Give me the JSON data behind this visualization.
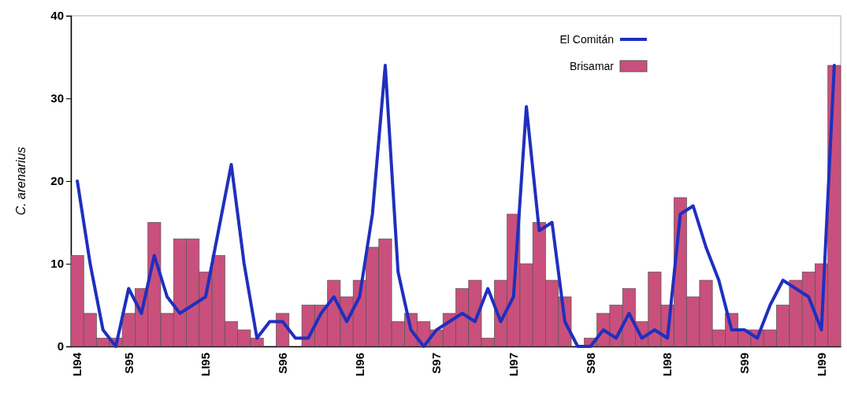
{
  "chart_data": {
    "type": "bar",
    "ylabel": "C. arenarius",
    "categories": [
      "LI94",
      null,
      null,
      null,
      "S95",
      null,
      null,
      null,
      null,
      null,
      "LI95",
      null,
      null,
      null,
      null,
      null,
      "S96",
      null,
      null,
      null,
      null,
      null,
      "LI96",
      null,
      null,
      null,
      null,
      null,
      "S97",
      null,
      null,
      null,
      null,
      null,
      "LI97",
      null,
      null,
      null,
      null,
      null,
      "S98",
      null,
      null,
      null,
      null,
      null,
      "LI98",
      null,
      null,
      null,
      null,
      null,
      "S99",
      null,
      null,
      null,
      null,
      null,
      "LI99",
      null
    ],
    "series": [
      {
        "name": "Brisamar",
        "color": "#c9507c",
        "values": [
          11,
          4,
          1,
          1,
          4,
          7,
          15,
          4,
          13,
          13,
          9,
          11,
          3,
          2,
          1,
          0,
          4,
          0,
          5,
          5,
          8,
          6,
          8,
          12,
          13,
          3,
          4,
          3,
          2,
          4,
          7,
          8,
          1,
          8,
          16,
          10,
          15,
          8,
          6,
          0,
          1,
          4,
          5,
          7,
          3,
          9,
          5,
          18,
          6,
          8,
          2,
          4,
          2,
          2,
          2,
          5,
          8,
          9,
          10,
          34
        ]
      },
      {
        "name": "El Comitán",
        "type": "line",
        "color": "#1f2fbf",
        "values": [
          20,
          10,
          2,
          0,
          7,
          4,
          11,
          6,
          4,
          5,
          6,
          14,
          22,
          10,
          1,
          3,
          3,
          1,
          1,
          4,
          6,
          3,
          6,
          16,
          34,
          9,
          2,
          0,
          2,
          3,
          4,
          3,
          7,
          3,
          6,
          29,
          14,
          15,
          3,
          0,
          0,
          2,
          1,
          4,
          1,
          2,
          1,
          16,
          17,
          12,
          8,
          2,
          2,
          1,
          5,
          8,
          7,
          6,
          2,
          34
        ]
      }
    ],
    "ylim": [
      0,
      40
    ],
    "yticks": [
      0,
      10,
      20,
      30,
      40
    ],
    "legend": "top right",
    "marker": "none",
    "line_style": "solid",
    "grid": false
  }
}
